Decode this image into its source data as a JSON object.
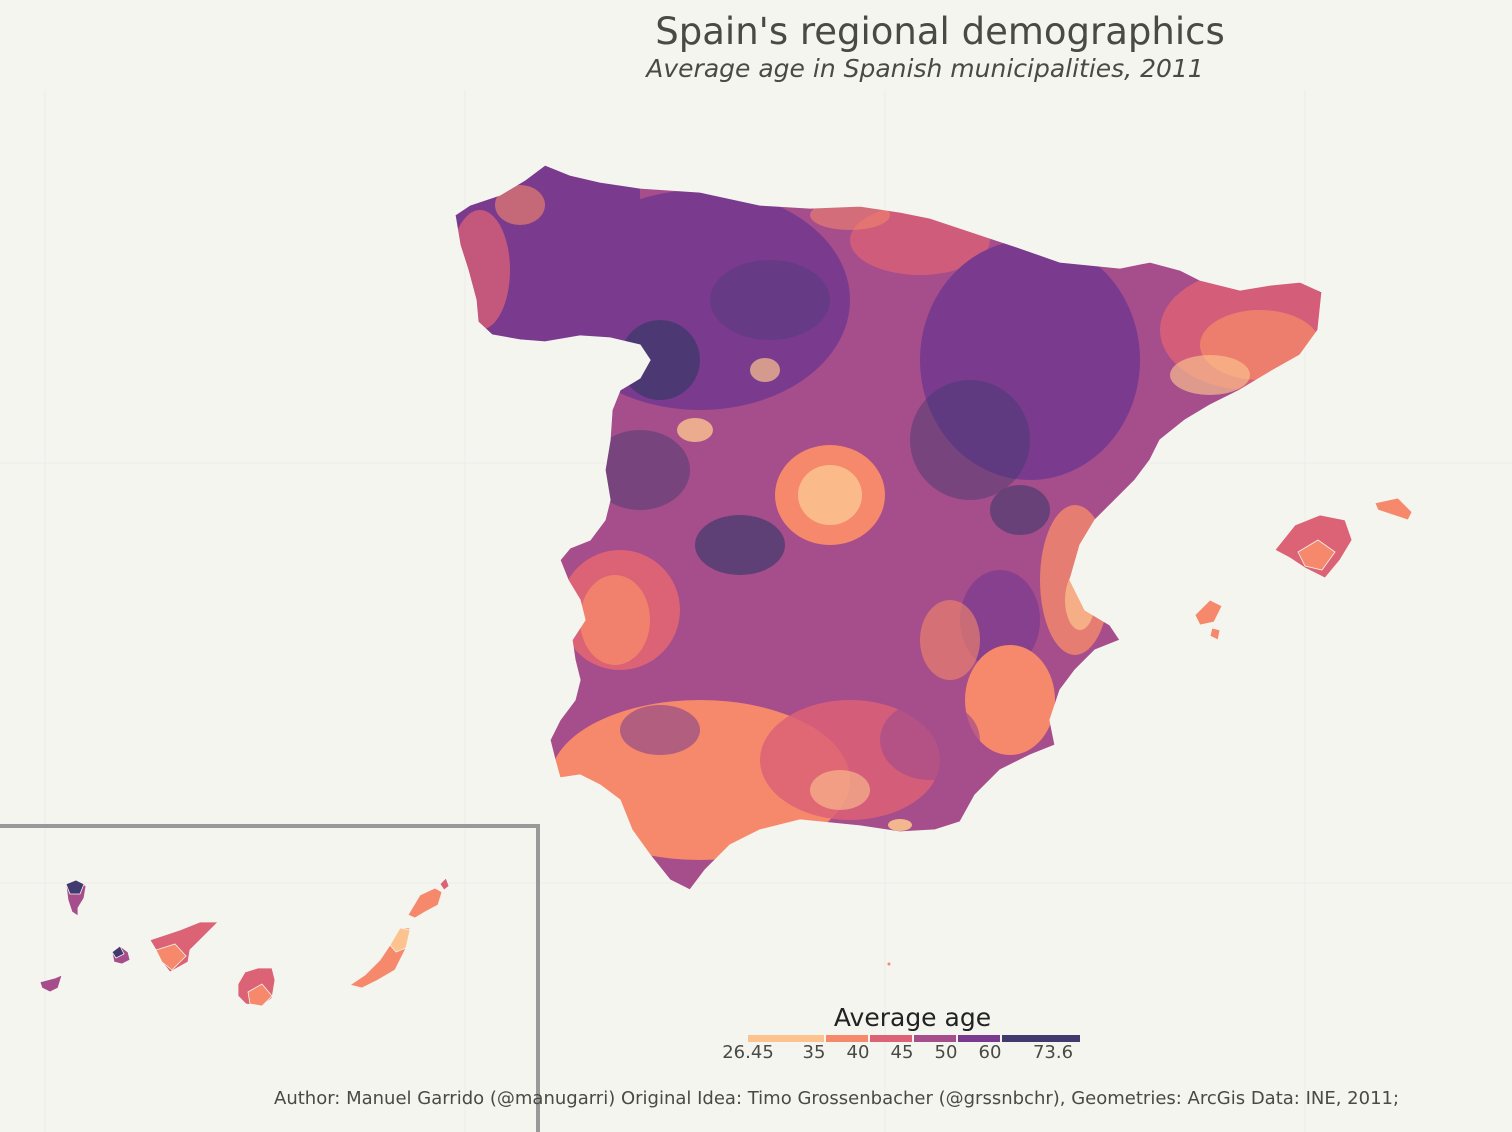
{
  "title": "Spain's regional demographics",
  "subtitle": "Average age in Spanish municipalities, 2011",
  "legend": {
    "title": "Average age",
    "ticks": [
      "26.45",
      "35",
      "40",
      "45",
      "50",
      "60",
      "73.6"
    ],
    "bins": [
      {
        "from": 26.45,
        "to": 35,
        "color": "#fcc38f"
      },
      {
        "from": 35,
        "to": 40,
        "color": "#f6896b"
      },
      {
        "from": 40,
        "to": 45,
        "color": "#dc6275"
      },
      {
        "from": 45,
        "to": 50,
        "color": "#a64d8b"
      },
      {
        "from": 50,
        "to": 60,
        "color": "#7a3b8e"
      },
      {
        "from": 60,
        "to": 73.6,
        "color": "#413a6e"
      }
    ]
  },
  "caption": "Author: Manuel Garrido (@manugarri) Original Idea: Timo Grossenbacher (@grssnbchr), Geometries: ArcGis Data: INE, 2011;",
  "colors": {
    "background": "#f5f5f0",
    "inset_border": "#999999",
    "text": "#4a4a45"
  }
}
